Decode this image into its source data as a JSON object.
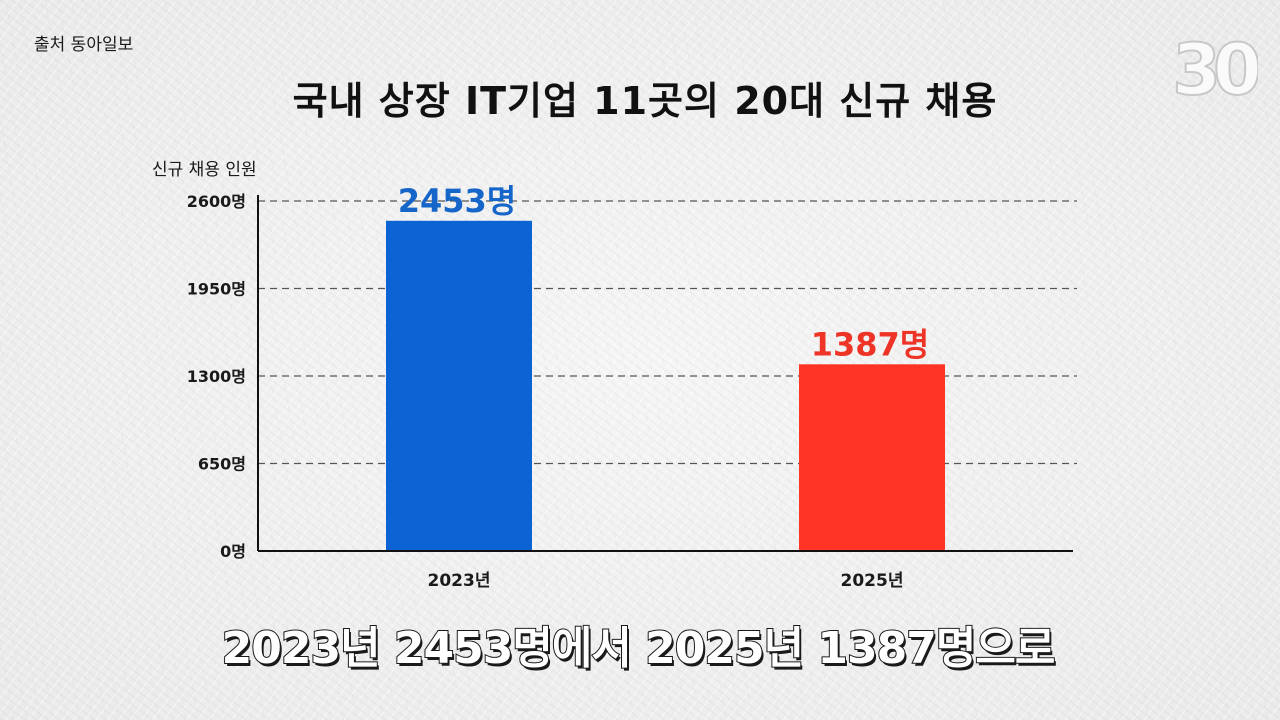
{
  "source": "출처 동아일보",
  "logo_text": "30",
  "caption": "2023년 2453명에서 2025년 1387명으로",
  "colors": {
    "bar_2023": "#0b63d4",
    "bar_2025": "#ff3326",
    "label_2023": "#1666c9",
    "label_2025": "#ee3427"
  },
  "chart_data": {
    "type": "bar",
    "title": "국내 상장 IT기업 11곳의 20대 신규 채용",
    "ylabel": "신규 채용 인원",
    "xlabel": "",
    "categories": [
      "2023년",
      "2025년"
    ],
    "values": [
      2453,
      1387
    ],
    "data_labels": [
      "2453명",
      "1387명"
    ],
    "ylim": [
      0,
      2600
    ],
    "yticks": [
      0,
      650,
      1300,
      1950,
      2600
    ],
    "ytick_labels": [
      "0명",
      "650명",
      "1300명",
      "1950명",
      "2600명"
    ],
    "grid": true
  }
}
